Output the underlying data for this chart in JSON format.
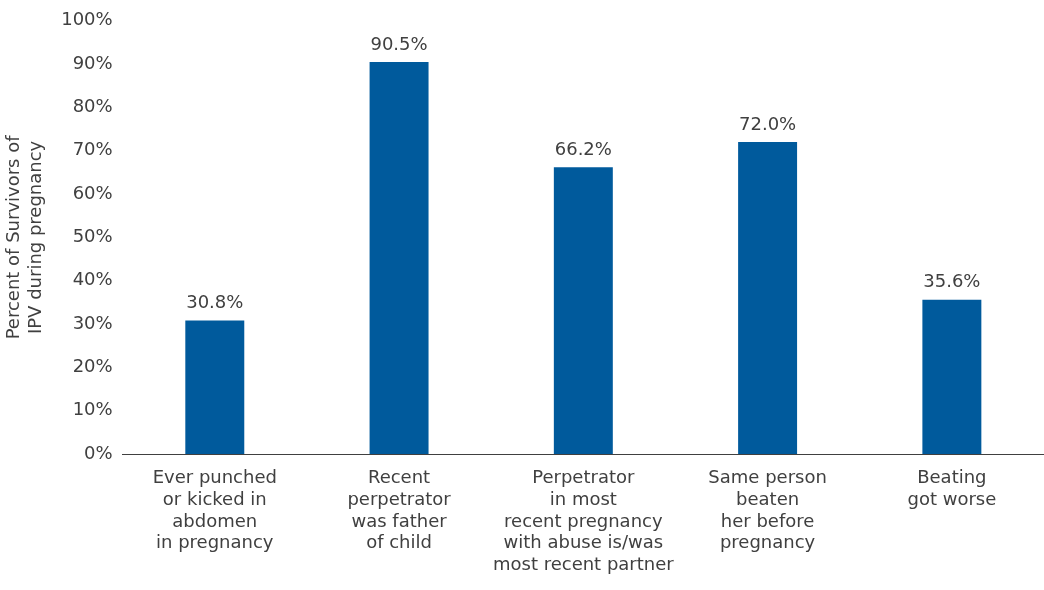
{
  "chart_data": {
    "type": "bar",
    "ylabel": "Percent of Survivors of\nIPV during pregnancy",
    "categories": [
      "Ever punched\nor kicked in\nabdomen\nin pregnancy",
      "Recent\nperpetrator\nwas father\nof child",
      "Perpetrator\nin most\nrecent pregnancy\nwith abuse is/was\nmost recent partner",
      "Same person\nbeaten\nher before\npregnancy",
      "Beating\ngot worse"
    ],
    "values": [
      30.8,
      90.5,
      66.2,
      72.0,
      35.6
    ],
    "value_labels": [
      "30.8%",
      "90.5%",
      "66.2%",
      "72.0%",
      "35.6%"
    ],
    "color": "#005a9c",
    "ylim": [
      0,
      100
    ],
    "yticks": [
      {
        "value": 0,
        "label": "0%"
      },
      {
        "value": 10,
        "label": "10%"
      },
      {
        "value": 20,
        "label": "20%"
      },
      {
        "value": 30,
        "label": "30%"
      },
      {
        "value": 40,
        "label": "40%"
      },
      {
        "value": 50,
        "label": "50%"
      },
      {
        "value": 60,
        "label": "60%"
      },
      {
        "value": 70,
        "label": "70%"
      },
      {
        "value": 80,
        "label": "80%"
      },
      {
        "value": 90,
        "label": "90%"
      },
      {
        "value": 100,
        "label": "100%"
      }
    ],
    "grid": false,
    "legend": false
  }
}
